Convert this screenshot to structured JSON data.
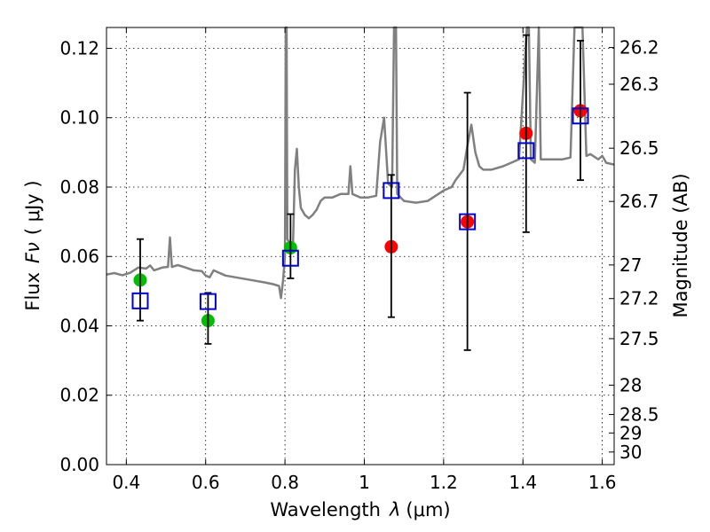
{
  "chart_data": {
    "type": "scatter",
    "x_axis": {
      "label_text": "Wavelength",
      "label_symbol": "λ",
      "label_unit": "(μm)",
      "range": [
        0.35,
        1.63
      ],
      "ticks": [
        0.4,
        0.6,
        0.8,
        1.0,
        1.2,
        1.4,
        1.6
      ],
      "tick_labels": [
        "0.4",
        "0.6",
        "0.8",
        "1",
        "1.2",
        "1.4",
        "1.6"
      ]
    },
    "y_axis": {
      "label_text": "Flux",
      "label_symbol": "Fν",
      "label_unit": "( μJy )",
      "range": [
        0.0,
        0.126
      ],
      "ticks": [
        0.0,
        0.02,
        0.04,
        0.06,
        0.08,
        0.1,
        0.12
      ],
      "tick_labels": [
        "0.00",
        "0.02",
        "0.04",
        "0.06",
        "0.08",
        "0.10",
        "0.12"
      ]
    },
    "y2_axis": {
      "label": "Magnitude (AB)",
      "ticks": [
        26.2,
        26.3,
        26.5,
        26.7,
        27,
        27.2,
        27.5,
        28,
        28.5,
        29,
        30
      ],
      "tick_labels": [
        "26.2",
        "26.3",
        "26.5",
        "26.7",
        "27",
        "27.2",
        "27.5",
        "28",
        "28.5",
        "29",
        "30"
      ]
    },
    "grid": true,
    "series": [
      {
        "kind": "line",
        "color": "#808080",
        "points": [
          [
            0.35,
            0.0548
          ],
          [
            0.37,
            0.0552
          ],
          [
            0.39,
            0.0546
          ],
          [
            0.41,
            0.0553
          ],
          [
            0.43,
            0.0568
          ],
          [
            0.45,
            0.0565
          ],
          [
            0.46,
            0.0574
          ],
          [
            0.47,
            0.056
          ],
          [
            0.49,
            0.0568
          ],
          [
            0.505,
            0.057
          ],
          [
            0.51,
            0.0655
          ],
          [
            0.515,
            0.057
          ],
          [
            0.53,
            0.0575
          ],
          [
            0.55,
            0.0568
          ],
          [
            0.57,
            0.056
          ],
          [
            0.59,
            0.0558
          ],
          [
            0.6,
            0.0545
          ],
          [
            0.61,
            0.054
          ],
          [
            0.62,
            0.056
          ],
          [
            0.65,
            0.0545
          ],
          [
            0.7,
            0.0535
          ],
          [
            0.75,
            0.0525
          ],
          [
            0.77,
            0.052
          ],
          [
            0.785,
            0.0515
          ],
          [
            0.79,
            0.048
          ],
          [
            0.795,
            0.053
          ],
          [
            0.8,
            0.06
          ],
          [
            0.802,
            0.126
          ],
          [
            0.804,
            0.126
          ],
          [
            0.806,
            0.065
          ],
          [
            0.82,
            0.062
          ],
          [
            0.825,
            0.085
          ],
          [
            0.83,
            0.091
          ],
          [
            0.835,
            0.08
          ],
          [
            0.84,
            0.074
          ],
          [
            0.85,
            0.072
          ],
          [
            0.86,
            0.071
          ],
          [
            0.87,
            0.072
          ],
          [
            0.88,
            0.0735
          ],
          [
            0.89,
            0.076
          ],
          [
            0.9,
            0.077
          ],
          [
            0.92,
            0.077
          ],
          [
            0.94,
            0.078
          ],
          [
            0.96,
            0.078
          ],
          [
            0.965,
            0.086
          ],
          [
            0.97,
            0.078
          ],
          [
            0.99,
            0.077
          ],
          [
            1.01,
            0.077
          ],
          [
            1.03,
            0.0775
          ],
          [
            1.04,
            0.093
          ],
          [
            1.05,
            0.1
          ],
          [
            1.06,
            0.081
          ],
          [
            1.07,
            0.08
          ],
          [
            1.075,
            0.126
          ],
          [
            1.077,
            0.126
          ],
          [
            1.08,
            0.126
          ],
          [
            1.083,
            0.078
          ],
          [
            1.1,
            0.076
          ],
          [
            1.13,
            0.0755
          ],
          [
            1.16,
            0.076
          ],
          [
            1.18,
            0.0775
          ],
          [
            1.2,
            0.079
          ],
          [
            1.22,
            0.08
          ],
          [
            1.23,
            0.082
          ],
          [
            1.25,
            0.085
          ],
          [
            1.26,
            0.092
          ],
          [
            1.27,
            0.098
          ],
          [
            1.28,
            0.09
          ],
          [
            1.29,
            0.086
          ],
          [
            1.3,
            0.085
          ],
          [
            1.32,
            0.085
          ],
          [
            1.35,
            0.086
          ],
          [
            1.37,
            0.087
          ],
          [
            1.39,
            0.088
          ],
          [
            1.41,
            0.126
          ],
          [
            1.415,
            0.126
          ],
          [
            1.42,
            0.088
          ],
          [
            1.43,
            0.087
          ],
          [
            1.44,
            0.126
          ],
          [
            1.445,
            0.088
          ],
          [
            1.46,
            0.088
          ],
          [
            1.5,
            0.088
          ],
          [
            1.52,
            0.0885
          ],
          [
            1.53,
            0.126
          ],
          [
            1.55,
            0.126
          ],
          [
            1.56,
            0.089
          ],
          [
            1.57,
            0.0895
          ],
          [
            1.59,
            0.088
          ],
          [
            1.6,
            0.089
          ],
          [
            1.61,
            0.087
          ],
          [
            1.63,
            0.0865
          ]
        ]
      },
      {
        "kind": "scatter",
        "color": "#00bf00",
        "points": [
          {
            "x": 0.435,
            "y": 0.0532
          },
          {
            "x": 0.606,
            "y": 0.0415
          },
          {
            "x": 0.814,
            "y": 0.0625
          }
        ]
      },
      {
        "kind": "scatter",
        "color": "#ff0000",
        "points": [
          {
            "x": 1.068,
            "y": 0.0628
          },
          {
            "x": 1.26,
            "y": 0.07
          },
          {
            "x": 1.408,
            "y": 0.0955
          },
          {
            "x": 1.545,
            "y": 0.102
          }
        ]
      },
      {
        "kind": "errorbar",
        "color": "#000000",
        "points": [
          {
            "x": 0.435,
            "low": 0.0415,
            "high": 0.065
          },
          {
            "x": 0.606,
            "low": 0.0348,
            "high": 0.0495
          },
          {
            "x": 0.814,
            "low": 0.0537,
            "high": 0.0722
          },
          {
            "x": 1.068,
            "low": 0.0425,
            "high": 0.0835
          },
          {
            "x": 1.26,
            "low": 0.033,
            "high": 0.1072
          },
          {
            "x": 1.408,
            "low": 0.067,
            "high": 0.1238
          },
          {
            "x": 1.545,
            "low": 0.082,
            "high": 0.1222
          }
        ]
      },
      {
        "kind": "open-square",
        "color": "#0000cc",
        "points": [
          {
            "x": 0.435,
            "y": 0.0472
          },
          {
            "x": 0.606,
            "y": 0.047
          },
          {
            "x": 0.814,
            "y": 0.0595
          },
          {
            "x": 1.068,
            "y": 0.079
          },
          {
            "x": 1.26,
            "y": 0.07
          },
          {
            "x": 1.408,
            "y": 0.0905
          },
          {
            "x": 1.545,
            "y": 0.1005
          }
        ]
      }
    ]
  }
}
